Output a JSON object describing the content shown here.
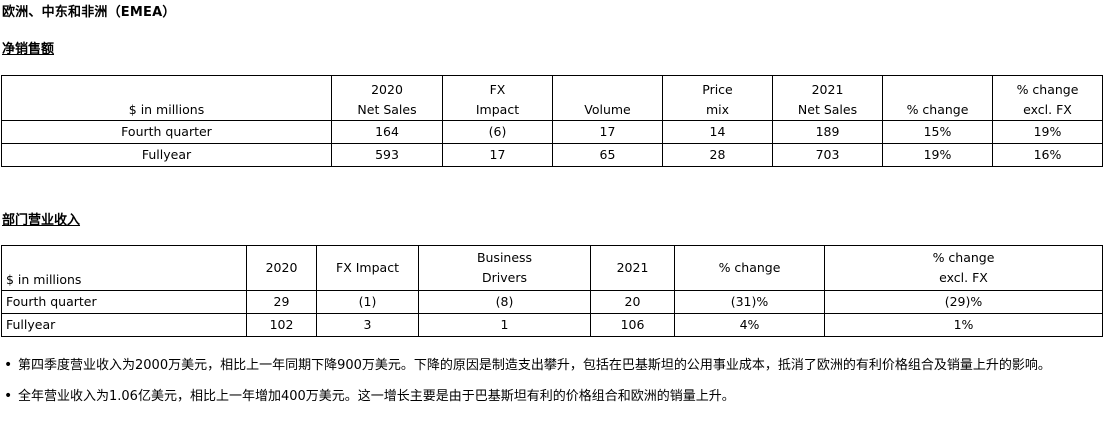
{
  "region_title": "欧洲、中东和非洲（EMEA）",
  "net_sales": {
    "title": "净销售额",
    "headers": [
      {
        "line1": "",
        "line2": "$ in millions"
      },
      {
        "line1": "2020",
        "line2": "Net Sales"
      },
      {
        "line1": "FX",
        "line2": "Impact"
      },
      {
        "line1": "",
        "line2": "Volume"
      },
      {
        "line1": "Price",
        "line2": "mix"
      },
      {
        "line1": "2021",
        "line2": "Net Sales"
      },
      {
        "line1": "",
        "line2": "% change"
      },
      {
        "line1": "% change",
        "line2": "excl. FX"
      }
    ],
    "rows": [
      [
        "Fourth quarter",
        "164",
        "(6)",
        "17",
        "14",
        "189",
        "15%",
        "19%"
      ],
      [
        "Fullyear",
        "593",
        "17",
        "65",
        "28",
        "703",
        "19%",
        "16%"
      ]
    ]
  },
  "segment_income": {
    "title": "部门营业收入",
    "headers": [
      {
        "line1": "",
        "line2": "$ in millions"
      },
      {
        "line1": "",
        "line2": "2020"
      },
      {
        "line1": "",
        "line2": "FX Impact"
      },
      {
        "line1": "Business",
        "line2": "Drivers"
      },
      {
        "line1": "",
        "line2": "2021"
      },
      {
        "line1": "",
        "line2": "% change"
      },
      {
        "line1": "% change",
        "line2": "excl. FX"
      }
    ],
    "rows": [
      [
        "Fourth quarter",
        "29",
        "(1)",
        "(8)",
        "20",
        "(31)%",
        "(29)%"
      ],
      [
        "Fullyear",
        "102",
        "3",
        "1",
        "106",
        "4%",
        "1%"
      ]
    ]
  },
  "notes": [
    "第四季度营业收入为2000万美元，相比上一年同期下降900万美元。下降的原因是制造支出攀升，包括在巴基斯坦的公用事业成本，抵消了欧洲的有利价格组合及销量上升的影响。",
    "全年营业收入为1.06亿美元，相比上一年增加400万美元。这一增长主要是由于巴基斯坦有利的价格组合和欧洲的销量上升。"
  ]
}
